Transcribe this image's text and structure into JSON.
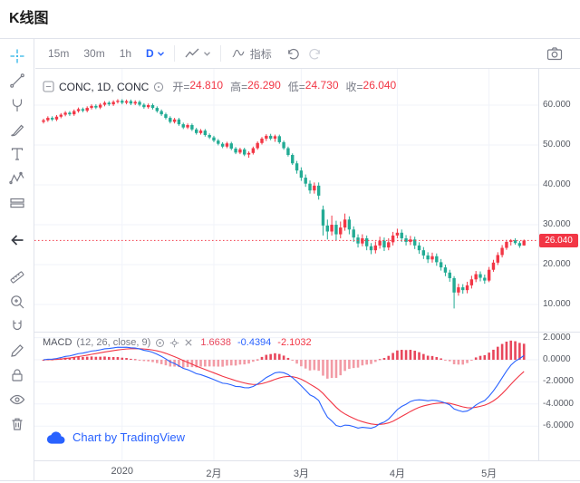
{
  "page": {
    "title": "K线图"
  },
  "toolbar": {
    "intervals": [
      "15m",
      "30m",
      "1h",
      "D"
    ],
    "active_interval": "D",
    "indicators_label": "指标",
    "icons": [
      "chevron-down-icon",
      "chart-style-icon",
      "indicator-squiggle-icon",
      "undo-icon",
      "redo-icon",
      "camera-icon"
    ]
  },
  "sidebar": {
    "active_tool": "crosshair",
    "tools": [
      "crosshair",
      "trend-line",
      "pitchfork",
      "brush",
      "text",
      "xabcd-pattern",
      "long-position",
      "back-arrow",
      "ruler",
      "zoom-in",
      "magnet",
      "pencil",
      "lock",
      "eye",
      "trash"
    ]
  },
  "legend": {
    "symbol_text": "CONC, 1D, CONC",
    "ohlc": [
      {
        "label": "开=",
        "value": "24.810"
      },
      {
        "label": "高=",
        "value": "26.290"
      },
      {
        "label": "低=",
        "value": "24.730"
      },
      {
        "label": "收=",
        "value": "26.040"
      }
    ]
  },
  "macd_legend": {
    "name": "MACD",
    "params": "(12, 26, close, 9)",
    "hist_value": "1.6638",
    "macd_value": "-0.4394",
    "signal_value": "-2.1032"
  },
  "attribution": {
    "text": "Chart by TradingView"
  },
  "chart_data": {
    "type": "candlestick",
    "symbol": "CONC",
    "interval": "1D",
    "last_price": 26.04,
    "last_price_label": "26.040",
    "current_ohlc": {
      "open": 24.81,
      "high": 26.29,
      "low": 24.73,
      "close": 26.04
    },
    "price_axis_ticks": [
      "60.000",
      "50.000",
      "40.000",
      "30.000",
      "20.000",
      "10.000"
    ],
    "price_ylim": [
      3,
      69
    ],
    "time_axis_ticks": [
      {
        "label": "2020",
        "index": 18
      },
      {
        "label": "2月",
        "index": 39
      },
      {
        "label": "3月",
        "index": 59
      },
      {
        "label": "4月",
        "index": 81
      },
      {
        "label": "5月",
        "index": 102
      }
    ],
    "colors": {
      "up": "#f23645",
      "down": "#22ab94",
      "last_price_line": "#f23645",
      "last_price_tag_bg": "#f23645",
      "macd_line": "#2962ff",
      "signal_line": "#f23645",
      "hist_pos": "#e8475c",
      "hist_neg": "#f29ba5",
      "accent": "#2962ff",
      "active_tool": "#2bb3e8"
    },
    "indicator": {
      "name": "MACD",
      "params": [
        12,
        26,
        "close",
        9
      ],
      "values": {
        "histogram": 1.6638,
        "macd": -0.4394,
        "signal": -2.1032
      },
      "axis_ticks": [
        "2.0000",
        "0.0000",
        "-2.0000",
        "-4.0000",
        "-6.0000"
      ],
      "ylim": [
        -9,
        2.5
      ]
    },
    "candles": [
      [
        55.8,
        56.6,
        55.4,
        56.2
      ],
      [
        56.2,
        57.2,
        55.8,
        56.8
      ],
      [
        56.8,
        57.2,
        56.0,
        56.4
      ],
      [
        56.4,
        57.5,
        56.0,
        57.1
      ],
      [
        57.1,
        58.0,
        56.7,
        57.6
      ],
      [
        57.6,
        58.5,
        57.2,
        58.1
      ],
      [
        58.1,
        58.5,
        57.3,
        57.7
      ],
      [
        57.7,
        58.9,
        57.3,
        58.5
      ],
      [
        58.5,
        59.4,
        58.1,
        59.0
      ],
      [
        59.0,
        59.4,
        58.2,
        58.6
      ],
      [
        58.6,
        59.7,
        58.2,
        59.3
      ],
      [
        59.3,
        60.2,
        58.9,
        59.8
      ],
      [
        59.8,
        60.2,
        59.0,
        59.4
      ],
      [
        59.4,
        60.5,
        59.0,
        60.1
      ],
      [
        60.1,
        61.0,
        59.7,
        60.6
      ],
      [
        60.6,
        61.0,
        59.8,
        60.2
      ],
      [
        60.2,
        61.2,
        59.8,
        60.8
      ],
      [
        60.8,
        61.5,
        60.4,
        61.1
      ],
      [
        61.1,
        61.5,
        60.2,
        60.6
      ],
      [
        60.6,
        61.4,
        60.2,
        61.0
      ],
      [
        61.0,
        61.4,
        60.0,
        60.4
      ],
      [
        60.4,
        61.2,
        60.0,
        60.8
      ],
      [
        60.8,
        61.2,
        59.7,
        60.1
      ],
      [
        60.1,
        60.5,
        59.1,
        59.5
      ],
      [
        59.5,
        60.4,
        59.1,
        60.0
      ],
      [
        60.0,
        60.4,
        58.9,
        59.3
      ],
      [
        59.3,
        59.7,
        58.1,
        58.5
      ],
      [
        58.5,
        58.9,
        57.3,
        57.7
      ],
      [
        57.7,
        58.1,
        56.4,
        56.8
      ],
      [
        56.8,
        57.2,
        55.4,
        55.8
      ],
      [
        55.8,
        56.8,
        55.4,
        56.4
      ],
      [
        56.4,
        56.8,
        54.8,
        55.2
      ],
      [
        55.2,
        55.6,
        54.0,
        54.4
      ],
      [
        54.4,
        55.4,
        54.0,
        55.0
      ],
      [
        55.0,
        55.4,
        53.5,
        53.9
      ],
      [
        53.9,
        54.3,
        52.6,
        53.0
      ],
      [
        53.0,
        54.0,
        52.6,
        53.6
      ],
      [
        53.6,
        54.0,
        52.1,
        52.5
      ],
      [
        52.5,
        52.9,
        51.5,
        51.9
      ],
      [
        51.9,
        52.3,
        50.7,
        51.1
      ],
      [
        51.1,
        51.5,
        49.9,
        50.3
      ],
      [
        50.3,
        50.7,
        49.2,
        49.6
      ],
      [
        49.6,
        50.8,
        49.2,
        50.4
      ],
      [
        50.4,
        50.8,
        48.7,
        49.1
      ],
      [
        49.1,
        49.5,
        47.7,
        48.1
      ],
      [
        48.1,
        49.3,
        47.7,
        48.9
      ],
      [
        48.9,
        49.3,
        47.2,
        47.6
      ],
      [
        47.6,
        48.4,
        46.8,
        48.0
      ],
      [
        48.0,
        49.6,
        47.6,
        49.2
      ],
      [
        49.2,
        50.9,
        48.8,
        50.5
      ],
      [
        50.5,
        52.0,
        50.1,
        51.6
      ],
      [
        51.6,
        52.7,
        51.0,
        52.3
      ],
      [
        52.3,
        52.8,
        51.2,
        51.6
      ],
      [
        51.6,
        52.6,
        50.8,
        52.2
      ],
      [
        52.2,
        52.6,
        50.3,
        50.7
      ],
      [
        50.7,
        51.1,
        48.8,
        49.2
      ],
      [
        49.2,
        49.6,
        47.1,
        47.5
      ],
      [
        47.5,
        47.9,
        45.0,
        45.4
      ],
      [
        45.4,
        46.0,
        42.8,
        43.6
      ],
      [
        43.6,
        44.4,
        41.0,
        41.8
      ],
      [
        41.8,
        42.6,
        39.5,
        40.3
      ],
      [
        40.3,
        41.1,
        37.8,
        38.6
      ],
      [
        38.6,
        40.6,
        37.8,
        39.8
      ],
      [
        39.8,
        40.6,
        36.3,
        37.3
      ],
      [
        33.8,
        34.8,
        27.3,
        29.8
      ],
      [
        29.8,
        31.3,
        26.3,
        28.3
      ],
      [
        28.3,
        32.3,
        27.3,
        30.0
      ],
      [
        30.0,
        31.0,
        26.1,
        27.6
      ],
      [
        27.6,
        30.8,
        26.6,
        29.3
      ],
      [
        29.3,
        32.8,
        28.5,
        31.3
      ],
      [
        31.3,
        32.1,
        27.6,
        28.8
      ],
      [
        28.8,
        29.6,
        25.7,
        26.8
      ],
      [
        26.8,
        27.6,
        24.3,
        25.3
      ],
      [
        25.3,
        27.6,
        24.6,
        26.6
      ],
      [
        26.6,
        27.3,
        23.6,
        24.6
      ],
      [
        24.6,
        25.4,
        22.6,
        23.6
      ],
      [
        23.6,
        25.8,
        22.8,
        24.8
      ],
      [
        24.8,
        27.0,
        24.0,
        26.0
      ],
      [
        26.0,
        26.8,
        23.4,
        24.3
      ],
      [
        24.3,
        26.6,
        23.6,
        25.6
      ],
      [
        25.6,
        28.2,
        24.8,
        27.3
      ],
      [
        27.3,
        29.0,
        26.6,
        28.0
      ],
      [
        28.0,
        28.8,
        25.7,
        26.6
      ],
      [
        26.6,
        27.4,
        24.8,
        25.7
      ],
      [
        25.7,
        27.2,
        24.9,
        26.3
      ],
      [
        26.3,
        27.0,
        23.9,
        24.8
      ],
      [
        24.8,
        25.6,
        22.7,
        23.6
      ],
      [
        23.6,
        24.4,
        21.4,
        22.3
      ],
      [
        22.3,
        23.1,
        20.4,
        21.3
      ],
      [
        21.3,
        23.0,
        20.5,
        22.1
      ],
      [
        22.1,
        22.8,
        19.7,
        20.6
      ],
      [
        20.6,
        21.4,
        18.5,
        19.3
      ],
      [
        19.3,
        20.0,
        17.1,
        18.0
      ],
      [
        18.0,
        18.7,
        15.7,
        16.6
      ],
      [
        16.6,
        17.1,
        9.0,
        13.0
      ],
      [
        13.0,
        15.2,
        12.2,
        14.3
      ],
      [
        14.3,
        15.1,
        12.7,
        13.6
      ],
      [
        13.6,
        15.7,
        12.8,
        14.8
      ],
      [
        14.8,
        17.2,
        14.0,
        16.3
      ],
      [
        16.3,
        18.4,
        15.6,
        17.6
      ],
      [
        17.6,
        18.3,
        15.8,
        16.7
      ],
      [
        16.7,
        17.5,
        15.2,
        16.0
      ],
      [
        16.0,
        19.4,
        15.6,
        18.7
      ],
      [
        18.7,
        21.2,
        18.2,
        20.5
      ],
      [
        20.5,
        23.1,
        19.9,
        22.4
      ],
      [
        22.4,
        24.9,
        21.8,
        24.2
      ],
      [
        24.2,
        26.2,
        23.7,
        25.7
      ],
      [
        25.7,
        26.4,
        24.8,
        26.1
      ],
      [
        26.1,
        26.6,
        25.0,
        25.4
      ],
      [
        25.4,
        25.9,
        24.2,
        24.7
      ],
      [
        24.81,
        26.29,
        24.73,
        26.04
      ]
    ]
  }
}
